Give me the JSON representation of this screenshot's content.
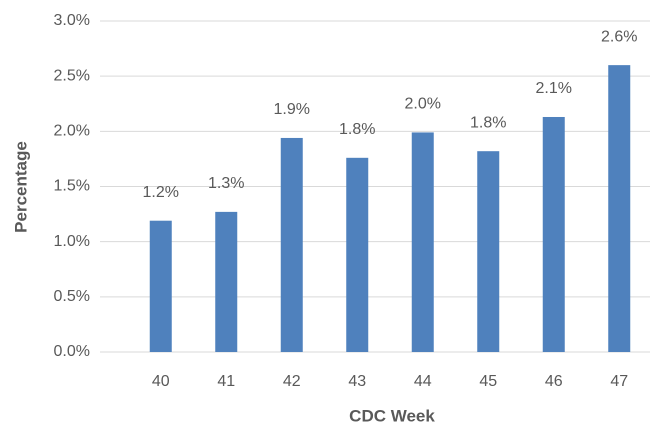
{
  "chart_data": {
    "type": "bar",
    "x_label": "CDC Week",
    "y_label": "Percentage",
    "categories": [
      "40",
      "41",
      "42",
      "43",
      "44",
      "45",
      "46",
      "47"
    ],
    "values": [
      1.19,
      1.27,
      1.94,
      1.76,
      1.99,
      1.82,
      2.13,
      2.6
    ],
    "value_labels": [
      "1.2%",
      "1.3%",
      "1.9%",
      "1.8%",
      "2.0%",
      "1.8%",
      "2.1%",
      "2.6%"
    ],
    "color": "#4f81bd",
    "ylim": [
      0,
      3
    ],
    "yticks": [
      {
        "value": 0,
        "label": "0.0%"
      },
      {
        "value": 0.5,
        "label": "0.5%"
      },
      {
        "value": 1,
        "label": "1.0%"
      },
      {
        "value": 1.5,
        "label": "1.5%"
      },
      {
        "value": 2,
        "label": "2.0%"
      },
      {
        "value": 2.5,
        "label": "2.5%"
      },
      {
        "value": 3,
        "label": "3.0%"
      }
    ],
    "grid": true
  }
}
